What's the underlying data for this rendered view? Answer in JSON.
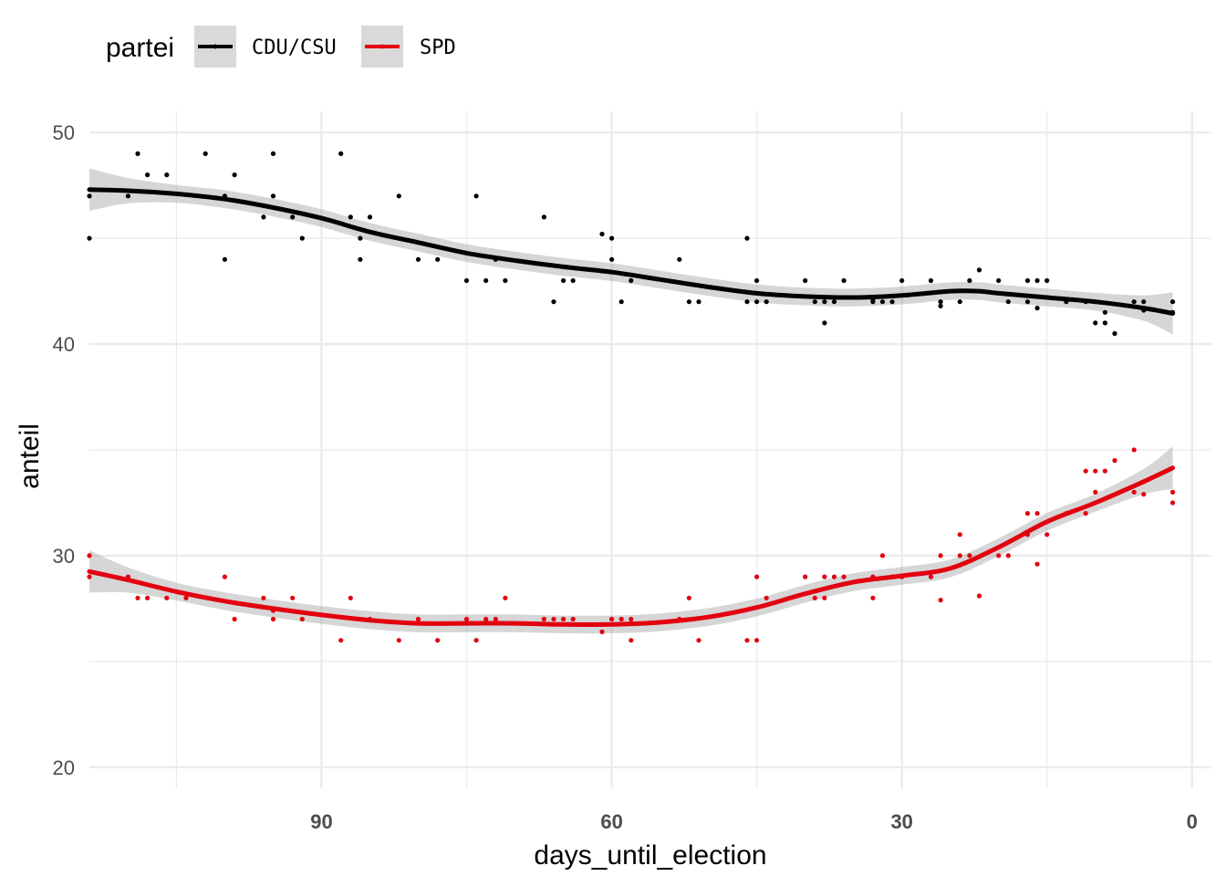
{
  "chart_data": {
    "type": "scatter",
    "xlabel": "days_until_election",
    "ylabel": "anteil",
    "xlim": [
      114,
      -2
    ],
    "ylim": [
      19,
      51
    ],
    "x_reversed": true,
    "x_ticks": [
      90,
      60,
      30,
      0
    ],
    "x_tick_labels": [
      "90",
      "60",
      "30",
      "0"
    ],
    "y_ticks": [
      20,
      30,
      40,
      50
    ],
    "y_tick_labels": [
      "20",
      "30",
      "40",
      "50"
    ],
    "grid": true,
    "legend": {
      "title": "partei",
      "position": "top-left",
      "entries": [
        "CDU/CSU",
        "SPD"
      ]
    },
    "series": [
      {
        "name": "CDU/CSU",
        "color": "#000000",
        "points": [
          [
            114,
            47
          ],
          [
            114,
            45
          ],
          [
            110,
            47
          ],
          [
            109,
            49
          ],
          [
            108,
            48
          ],
          [
            106,
            48
          ],
          [
            102,
            49
          ],
          [
            100,
            47
          ],
          [
            100,
            44
          ],
          [
            99,
            48
          ],
          [
            96,
            46
          ],
          [
            95,
            47
          ],
          [
            95,
            49
          ],
          [
            93,
            46
          ],
          [
            92,
            45
          ],
          [
            88,
            49
          ],
          [
            87,
            46
          ],
          [
            86,
            45
          ],
          [
            86,
            44
          ],
          [
            85,
            46
          ],
          [
            82,
            47
          ],
          [
            80,
            44
          ],
          [
            78,
            44
          ],
          [
            75,
            43
          ],
          [
            74,
            47
          ],
          [
            73,
            43
          ],
          [
            72,
            44
          ],
          [
            71,
            43
          ],
          [
            67,
            46
          ],
          [
            66,
            42
          ],
          [
            65,
            43
          ],
          [
            64,
            43
          ],
          [
            61,
            45.2
          ],
          [
            60,
            45
          ],
          [
            60,
            44
          ],
          [
            59,
            42
          ],
          [
            58,
            43
          ],
          [
            53,
            44
          ],
          [
            52,
            42
          ],
          [
            51,
            42
          ],
          [
            46,
            45
          ],
          [
            46,
            42
          ],
          [
            45,
            43
          ],
          [
            45,
            42
          ],
          [
            44,
            42
          ],
          [
            40,
            43
          ],
          [
            39,
            42
          ],
          [
            38,
            42
          ],
          [
            38,
            41
          ],
          [
            37,
            42
          ],
          [
            36,
            43
          ],
          [
            33,
            42
          ],
          [
            33,
            42.1
          ],
          [
            32,
            42
          ],
          [
            31,
            42
          ],
          [
            30,
            43
          ],
          [
            27,
            43
          ],
          [
            26,
            42
          ],
          [
            26,
            41.8
          ],
          [
            24,
            42
          ],
          [
            23,
            43
          ],
          [
            22,
            43.5
          ],
          [
            20,
            43
          ],
          [
            19,
            42
          ],
          [
            17,
            43
          ],
          [
            17,
            42
          ],
          [
            16,
            43
          ],
          [
            16,
            41.7
          ],
          [
            15,
            43
          ],
          [
            13,
            42
          ],
          [
            11,
            42
          ],
          [
            10,
            42
          ],
          [
            10,
            41
          ],
          [
            9,
            41.5
          ],
          [
            9,
            41
          ],
          [
            8,
            40.5
          ],
          [
            6,
            42
          ],
          [
            5,
            42
          ],
          [
            5,
            41.6
          ],
          [
            2,
            42
          ],
          [
            2,
            41.5
          ]
        ],
        "smooth_x": [
          114,
          110,
          105,
          100,
          95,
          90,
          85,
          80,
          75,
          70,
          65,
          60,
          55,
          50,
          45,
          40,
          35,
          30,
          25,
          22,
          20,
          15,
          10,
          5,
          2
        ],
        "smooth_y": [
          47.3,
          47.25,
          47.1,
          46.85,
          46.45,
          45.95,
          45.3,
          44.8,
          44.3,
          43.95,
          43.65,
          43.4,
          43.05,
          42.7,
          42.4,
          42.25,
          42.2,
          42.3,
          42.5,
          42.5,
          42.4,
          42.2,
          42.0,
          41.7,
          41.45
        ]
      },
      {
        "name": "SPD",
        "color": "#e3000f",
        "points": [
          [
            114,
            30
          ],
          [
            114,
            29
          ],
          [
            110,
            29
          ],
          [
            109,
            28
          ],
          [
            108,
            28
          ],
          [
            106,
            28
          ],
          [
            104,
            28
          ],
          [
            100,
            29
          ],
          [
            99,
            27
          ],
          [
            96,
            28
          ],
          [
            95,
            27
          ],
          [
            95,
            27.4
          ],
          [
            93,
            28
          ],
          [
            92,
            27
          ],
          [
            88,
            26
          ],
          [
            87,
            28
          ],
          [
            86,
            27
          ],
          [
            85,
            27
          ],
          [
            82,
            26
          ],
          [
            80,
            27
          ],
          [
            78,
            26
          ],
          [
            75,
            27
          ],
          [
            74,
            26
          ],
          [
            73,
            27
          ],
          [
            72,
            27
          ],
          [
            71,
            28
          ],
          [
            67,
            27
          ],
          [
            66,
            27
          ],
          [
            65,
            27
          ],
          [
            64,
            27
          ],
          [
            61,
            26.4
          ],
          [
            60,
            27
          ],
          [
            59,
            27
          ],
          [
            58,
            27
          ],
          [
            58,
            26
          ],
          [
            53,
            27
          ],
          [
            52,
            28
          ],
          [
            51,
            26
          ],
          [
            46,
            26
          ],
          [
            45,
            26
          ],
          [
            45,
            29
          ],
          [
            44,
            28
          ],
          [
            40,
            29
          ],
          [
            39,
            28
          ],
          [
            38,
            28
          ],
          [
            38,
            29
          ],
          [
            37,
            29
          ],
          [
            36,
            29
          ],
          [
            33,
            28
          ],
          [
            33,
            29
          ],
          [
            32,
            30
          ],
          [
            31,
            29
          ],
          [
            30,
            29
          ],
          [
            27,
            29
          ],
          [
            26,
            30
          ],
          [
            26,
            27.9
          ],
          [
            24,
            30
          ],
          [
            24,
            31
          ],
          [
            23,
            30
          ],
          [
            22,
            28.1
          ],
          [
            20,
            30
          ],
          [
            19,
            30
          ],
          [
            17,
            32
          ],
          [
            17,
            31
          ],
          [
            16,
            32
          ],
          [
            16,
            29.6
          ],
          [
            15,
            31
          ],
          [
            13,
            32
          ],
          [
            11,
            34
          ],
          [
            11,
            32
          ],
          [
            10,
            34
          ],
          [
            10,
            33
          ],
          [
            9,
            34
          ],
          [
            8,
            34.5
          ],
          [
            6,
            35
          ],
          [
            6,
            33
          ],
          [
            5,
            33.5
          ],
          [
            5,
            32.9
          ],
          [
            2,
            33
          ],
          [
            2,
            32.5
          ]
        ],
        "smooth_x": [
          114,
          110,
          105,
          100,
          95,
          90,
          85,
          80,
          75,
          70,
          65,
          60,
          55,
          50,
          45,
          40,
          35,
          30,
          25,
          20,
          15,
          10,
          5,
          2
        ],
        "smooth_y": [
          29.25,
          28.85,
          28.3,
          27.85,
          27.5,
          27.2,
          26.95,
          26.8,
          26.8,
          26.8,
          26.75,
          26.75,
          26.85,
          27.1,
          27.55,
          28.2,
          28.75,
          29.05,
          29.4,
          30.4,
          31.6,
          32.5,
          33.5,
          34.15
        ]
      }
    ]
  }
}
